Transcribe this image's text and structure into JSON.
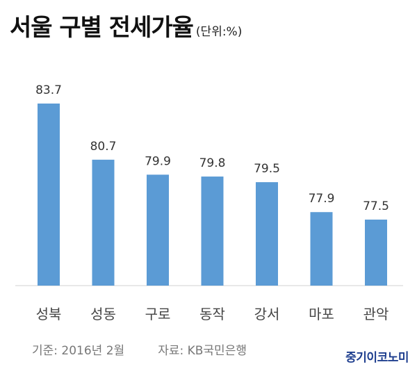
{
  "chart_data": {
    "type": "bar",
    "title": "서울 구별 전세가율",
    "unit_note": "(단위:%)",
    "categories": [
      "성북",
      "성동",
      "구로",
      "동작",
      "강서",
      "마포",
      "관악"
    ],
    "values": [
      83.7,
      80.7,
      79.9,
      79.8,
      79.5,
      77.9,
      77.5
    ],
    "value_labels": [
      "83.7",
      "80.7",
      "79.9",
      "79.8",
      "79.5",
      "77.9",
      "77.5"
    ],
    "bar_color": "#5b9bd5",
    "grid": false,
    "legend": "none"
  },
  "footer": {
    "basis": "기준: 2016년 2월",
    "source": "자료: KB국민은행"
  },
  "brand": "중기이코노미"
}
